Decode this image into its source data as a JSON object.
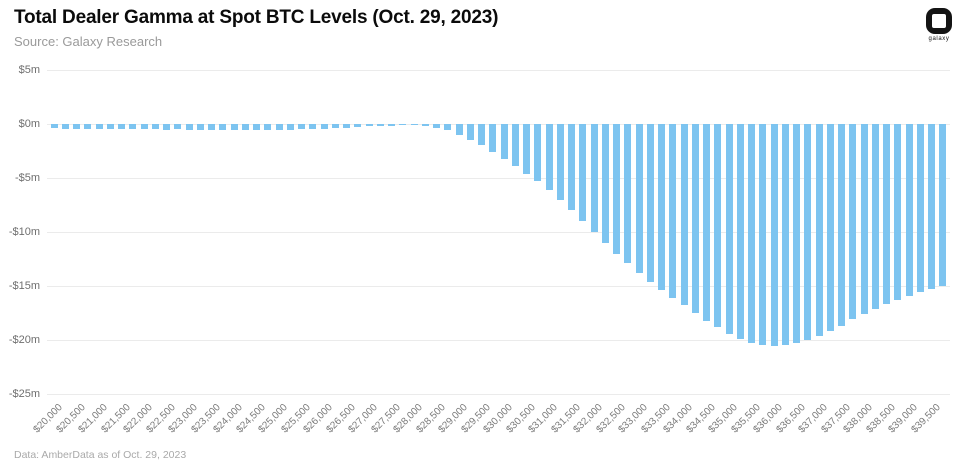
{
  "header": {
    "title": "Total Dealer Gamma at Spot BTC Levels (Oct. 29, 2023)",
    "subtitle": "Source: Galaxy Research"
  },
  "logo": {
    "label": "galaxy"
  },
  "footer": {
    "note": "Data: AmberData as of Oct. 29, 2023"
  },
  "colors": {
    "bar": "#7dc4f0",
    "grid": "#ebebeb",
    "axis_text": "#6f6f6f",
    "tick_text": "#7a7a7a",
    "title": "#0b0b0b",
    "subtitle": "#9a9a9a",
    "footer": "#a9a9a9",
    "logo": "#141414"
  },
  "chart_data": {
    "type": "bar",
    "title": "Total Dealer Gamma at Spot BTC Levels (Oct. 29, 2023)",
    "xlabel": "",
    "ylabel": "",
    "ylim": [
      -25,
      5
    ],
    "grid": true,
    "legend": false,
    "units": "millions USD",
    "categories": [
      20000,
      20250,
      20500,
      20750,
      21000,
      21250,
      21500,
      21750,
      22000,
      22250,
      22500,
      22750,
      23000,
      23250,
      23500,
      23750,
      24000,
      24250,
      24500,
      24750,
      25000,
      25250,
      25500,
      25750,
      26000,
      26250,
      26500,
      26750,
      27000,
      27250,
      27500,
      27750,
      28000,
      28250,
      28500,
      28750,
      29000,
      29250,
      29500,
      29750,
      30000,
      30250,
      30500,
      30750,
      31000,
      31250,
      31500,
      31750,
      32000,
      32250,
      32500,
      32750,
      33000,
      33250,
      33500,
      33750,
      34000,
      34250,
      34500,
      34750,
      35000,
      35250,
      35500,
      35750,
      36000,
      36250,
      36500,
      36750,
      37000,
      37250,
      37500,
      37750,
      38000,
      38250,
      38500,
      38750,
      39000,
      39250,
      39500,
      39750
    ],
    "values": [
      -0.4,
      -0.42,
      -0.45,
      -0.43,
      -0.46,
      -0.44,
      -0.47,
      -0.46,
      -0.5,
      -0.47,
      -0.52,
      -0.5,
      -0.54,
      -0.52,
      -0.55,
      -0.53,
      -0.55,
      -0.54,
      -0.55,
      -0.52,
      -0.55,
      -0.52,
      -0.5,
      -0.48,
      -0.45,
      -0.4,
      -0.35,
      -0.3,
      -0.22,
      -0.18,
      -0.15,
      -0.13,
      -0.13,
      -0.2,
      -0.4,
      -0.6,
      -1.0,
      -1.5,
      -1.9,
      -2.6,
      -3.2,
      -3.9,
      -4.6,
      -5.3,
      -6.1,
      -7.0,
      -8.0,
      -9.0,
      -10.0,
      -11.0,
      -12.0,
      -12.9,
      -13.8,
      -14.6,
      -15.4,
      -16.1,
      -16.8,
      -17.5,
      -18.2,
      -18.8,
      -19.4,
      -19.9,
      -20.3,
      -20.5,
      -20.6,
      -20.5,
      -20.3,
      -20.0,
      -19.6,
      -19.2,
      -18.7,
      -18.1,
      -17.6,
      -17.1,
      -16.7,
      -16.3,
      -15.9,
      -15.6,
      -15.3,
      -15.0
    ],
    "y_ticks": [
      5,
      0,
      -5,
      -10,
      -15,
      -20,
      -25
    ],
    "y_tick_labels": [
      "$5m",
      "$0m",
      "-$5m",
      "-$10m",
      "-$15m",
      "-$20m",
      "-$25m"
    ],
    "x_tick_every": 2,
    "x_tick_labels": [
      "$20,000",
      "$20,500",
      "$21,000",
      "$21,500",
      "$22,000",
      "$22,500",
      "$23,000",
      "$23,500",
      "$24,000",
      "$24,500",
      "$25,000",
      "$25,500",
      "$26,000",
      "$26,500",
      "$27,000",
      "$27,500",
      "$28,000",
      "$28,500",
      "$29,000",
      "$29,500",
      "$30,000",
      "$30,500",
      "$31,000",
      "$31,500",
      "$32,000",
      "$32,500",
      "$33,000",
      "$33,500",
      "$34,000",
      "$34,500",
      "$35,000",
      "$35,500",
      "$36,000",
      "$36,500",
      "$37,000",
      "$37,500",
      "$38,000",
      "$38,500",
      "$39,000",
      "$39,500"
    ]
  }
}
